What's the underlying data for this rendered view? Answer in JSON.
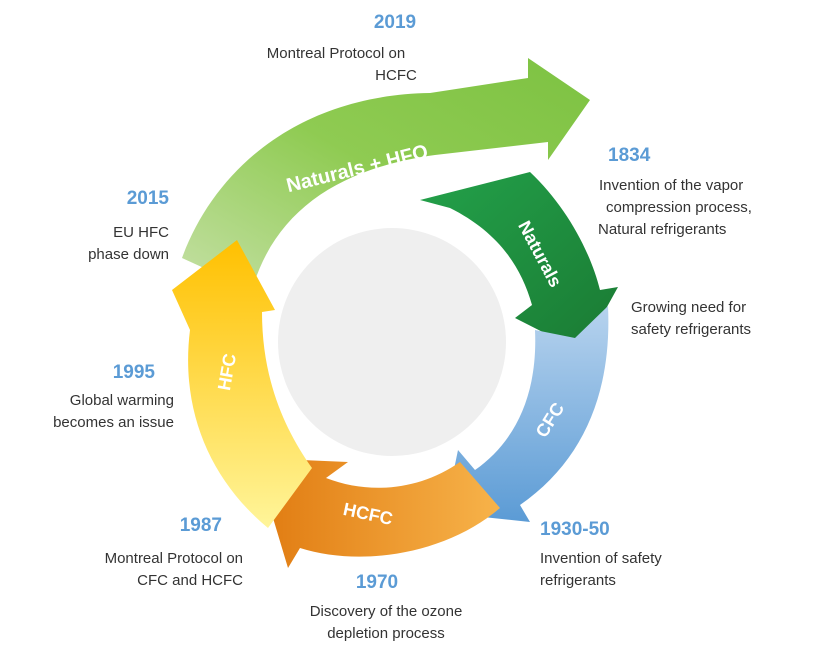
{
  "colors": {
    "year_text": "#5b9bd5",
    "desc_text": "#333333",
    "center_circle": "#efefef",
    "arrow_green": "#7dc242",
    "arrow_dark_green": "#1f8a3a",
    "arrow_blue": "#5b9bd5",
    "arrow_orange": "#f0961e",
    "arrow_yellow": "#ffc000"
  },
  "arrows": {
    "naturals_hfo": "Naturals + HFO",
    "naturals": "Naturals",
    "cfc": "CFC",
    "hcfc": "HCFC",
    "hfc": "HFC"
  },
  "milestones": {
    "m2019": {
      "year": "2019",
      "lines": [
        "Montreal Protocol on",
        "HCFC"
      ]
    },
    "m1834": {
      "year": "1834",
      "lines": [
        "Invention of the vapor",
        "compression process,",
        "Natural refrigerants"
      ]
    },
    "growing": {
      "lines": [
        "Growing need for",
        "safety refrigerants"
      ]
    },
    "m1930": {
      "year": "1930-50",
      "lines": [
        "Invention of safety",
        "refrigerants"
      ]
    },
    "m1970": {
      "year": "1970",
      "lines": [
        "Discovery of the ozone",
        "depletion process"
      ]
    },
    "m1987": {
      "year": "1987",
      "lines": [
        "Montreal Protocol on",
        "CFC and HCFC"
      ]
    },
    "m1995": {
      "year": "1995",
      "lines": [
        "Global warming",
        "becomes an issue"
      ]
    },
    "m2015": {
      "year": "2015",
      "lines": [
        "EU HFC",
        "phase down"
      ]
    }
  }
}
